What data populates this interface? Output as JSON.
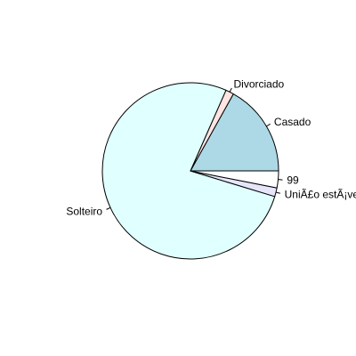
{
  "chart_data": {
    "type": "pie",
    "title": "",
    "slices": [
      {
        "label": "Casado",
        "value": 16.9,
        "color": "#add8e6"
      },
      {
        "label": "Divorciado",
        "value": 1.5,
        "color": "#ffe4e1"
      },
      {
        "label": "Solteiro",
        "value": 76.9,
        "color": "#e0ffff"
      },
      {
        "label": "UniÃ£o estÃ¡vel",
        "value": 1.6,
        "color": "#e6e6fa"
      },
      {
        "label": "99",
        "value": 3.1,
        "color": "#ffffff"
      }
    ],
    "start_angle_deg": 0,
    "direction": "counterclockwise",
    "legend": "none"
  }
}
